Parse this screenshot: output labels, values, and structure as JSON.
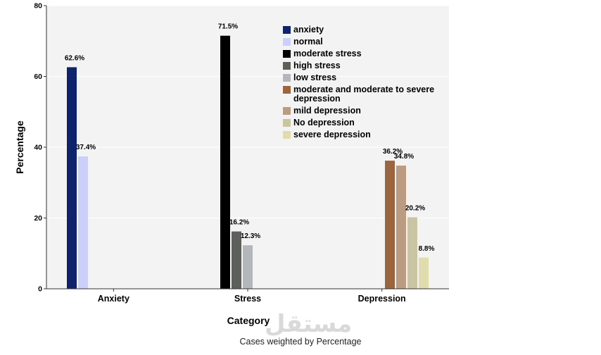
{
  "chart_data": {
    "type": "bar",
    "xlabel": "Category",
    "ylabel": "Percentage",
    "ylim": [
      0,
      80
    ],
    "yticks": [
      0,
      20,
      40,
      60,
      80
    ],
    "grid": true,
    "legend_position": "top-right",
    "footnote": "Cases weighted by Percentage",
    "watermark": "مستقل",
    "groups": [
      {
        "category": "Anxiety",
        "bars": [
          {
            "series": "anxiety",
            "value": 62.6,
            "label": "62.6%"
          },
          {
            "series": "normal",
            "value": 37.4,
            "label": "37.4%"
          }
        ]
      },
      {
        "category": "Stress",
        "bars": [
          {
            "series": "moderate stress",
            "value": 71.5,
            "label": "71.5%"
          },
          {
            "series": "high stress",
            "value": 16.2,
            "label": "16.2%"
          },
          {
            "series": "low stress",
            "value": 12.3,
            "label": "12.3%"
          }
        ]
      },
      {
        "category": "Depression",
        "bars": [
          {
            "series": "moderate and moderate to severe depression",
            "value": 36.2,
            "label": "36.2%"
          },
          {
            "series": "mild depression",
            "value": 34.8,
            "label": "34.8%"
          },
          {
            "series": "No depression",
            "value": 20.2,
            "label": "20.2%"
          },
          {
            "series": "severe depression",
            "value": 8.8,
            "label": "8.8%"
          }
        ]
      }
    ],
    "legend": [
      {
        "name": "anxiety",
        "color": "#0f226c"
      },
      {
        "name": "normal",
        "color": "#cccff9"
      },
      {
        "name": "moderate stress",
        "color": "#000000"
      },
      {
        "name": "high stress",
        "color": "#5d5f5d"
      },
      {
        "name": "low stress",
        "color": "#b3b6ba"
      },
      {
        "name": "moderate and moderate to severe depression",
        "color": "#9b6540"
      },
      {
        "name": "mild depression",
        "color": "#bb9b82"
      },
      {
        "name": "No depression",
        "color": "#cac4a3"
      },
      {
        "name": "severe depression",
        "color": "#e0dcad"
      }
    ]
  }
}
